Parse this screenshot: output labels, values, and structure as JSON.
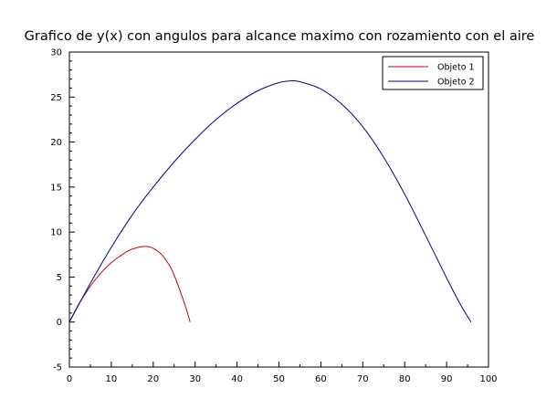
{
  "chart_data": {
    "type": "line",
    "title": "Grafico de y(x) con angulos para alcance maximo con rozamiento con el aire",
    "xlabel": "",
    "ylabel": "",
    "xlim": [
      0,
      100
    ],
    "ylim": [
      -5,
      30
    ],
    "x_ticks": [
      0,
      10,
      20,
      30,
      40,
      50,
      60,
      70,
      80,
      90,
      100
    ],
    "y_ticks": [
      -5,
      0,
      5,
      10,
      15,
      20,
      25,
      30
    ],
    "x_tick_labels": [
      "0",
      "10",
      "20",
      "30",
      "40",
      "50",
      "60",
      "70",
      "80",
      "90",
      "100"
    ],
    "y_tick_labels": [
      "-5",
      "0",
      "5",
      "10",
      "15",
      "20",
      "25",
      "30"
    ],
    "grid": false,
    "legend_position": "top-right",
    "series": [
      {
        "name": "Objeto 1",
        "color": "#cc0000",
        "x": [
          0,
          2,
          4,
          6,
          8,
          10,
          12,
          14,
          16,
          18,
          19,
          20,
          22,
          24,
          25,
          26,
          27,
          28,
          28.8
        ],
        "y": [
          0,
          1.8,
          3.3,
          4.6,
          5.7,
          6.6,
          7.3,
          7.9,
          8.25,
          8.4,
          8.35,
          8.2,
          7.5,
          6.2,
          5.2,
          4.0,
          2.7,
          1.3,
          0
        ]
      },
      {
        "name": "Objeto 2",
        "color": "#000099",
        "x": [
          0,
          5,
          10,
          15,
          20,
          25,
          30,
          35,
          40,
          45,
          50,
          53,
          55,
          60,
          65,
          70,
          75,
          80,
          85,
          90,
          93,
          95.8
        ],
        "y": [
          0,
          4.3,
          8.3,
          11.9,
          15.0,
          17.8,
          20.3,
          22.5,
          24.3,
          25.7,
          26.6,
          26.8,
          26.7,
          25.9,
          24.2,
          21.7,
          18.3,
          14.2,
          9.6,
          4.9,
          2.2,
          0
        ]
      }
    ]
  }
}
